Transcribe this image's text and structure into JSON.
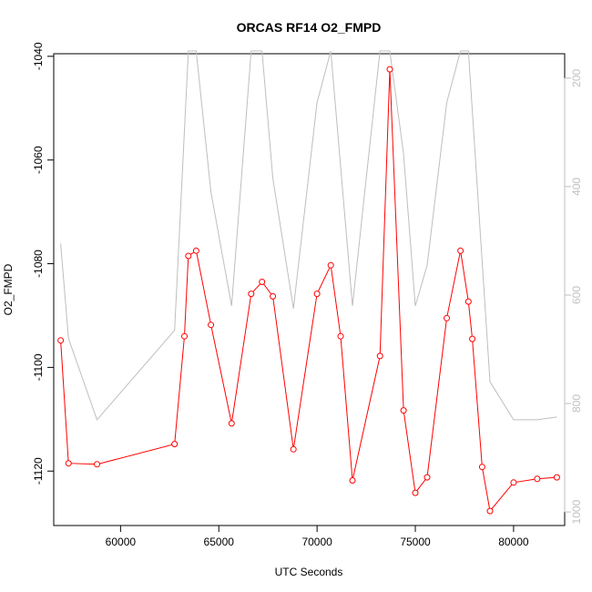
{
  "chart_data": {
    "type": "line",
    "title": "ORCAS RF14 O2_FMPD",
    "xlabel": "UTC Seconds",
    "ylabel": "O2_FMPD",
    "xlim": [
      56600,
      82600
    ],
    "ylim": [
      -1130.5,
      -1039.5
    ],
    "y2lim": [
      1025,
      155
    ],
    "x_ticks": [
      60000,
      65000,
      70000,
      75000,
      80000
    ],
    "x_tick_labels": [
      "60000",
      "65000",
      "70000",
      "75000",
      "80000"
    ],
    "y_ticks": [
      -1040,
      -1060,
      -1080,
      -1100,
      -1120
    ],
    "y_tick_labels": [
      "-1040",
      "-1060",
      "-1080",
      "-1100",
      "-1120"
    ],
    "y2_ticks": [
      200,
      400,
      600,
      800,
      1000
    ],
    "y2_tick_labels": [
      "200",
      "400",
      "600",
      "800",
      "1000"
    ],
    "colors": {
      "primary": "#ff0000",
      "secondary": "#bebebe"
    },
    "series": [
      {
        "axis": "left",
        "color": "#ff0000",
        "markers": "open-circle",
        "x": [
          56950,
          57350,
          58800,
          62750,
          63250,
          63450,
          63850,
          64600,
          65650,
          66650,
          67200,
          67750,
          68800,
          70000,
          70700,
          71200,
          71800,
          73200,
          73700,
          74400,
          75000,
          75600,
          76600,
          77300,
          77700,
          77900,
          78400,
          78800,
          80000,
          81200,
          82200
        ],
        "values": [
          -1094.8,
          -1118.5,
          -1118.7,
          -1114.8,
          -1094,
          -1078.5,
          -1077.5,
          -1091.8,
          -1110.8,
          -1085.8,
          -1083.5,
          -1086.3,
          -1115.8,
          -1085.8,
          -1080.3,
          -1094,
          -1121.8,
          -1097.8,
          -1042.5,
          -1108.3,
          -1124.2,
          -1121.2,
          -1090.5,
          -1077.5,
          -1087.3,
          -1094.5,
          -1119.2,
          -1127.7,
          -1122.2,
          -1121.5,
          -1121.2
        ]
      },
      {
        "axis": "right",
        "color": "#bebebe",
        "markers": "none",
        "x": [
          56950,
          57350,
          58800,
          62750,
          63450,
          63850,
          64600,
          65650,
          66650,
          67200,
          67750,
          68800,
          70000,
          70700,
          71800,
          73200,
          73700,
          74400,
          75000,
          75600,
          76600,
          77300,
          77700,
          78800,
          80000,
          81200,
          82200
        ],
        "values": [
          505,
          680,
          830,
          665,
          150,
          150,
          410,
          620,
          150,
          150,
          385,
          625,
          245,
          150,
          620,
          150,
          150,
          340,
          620,
          545,
          245,
          150,
          150,
          760,
          830,
          830,
          825
        ]
      }
    ]
  }
}
